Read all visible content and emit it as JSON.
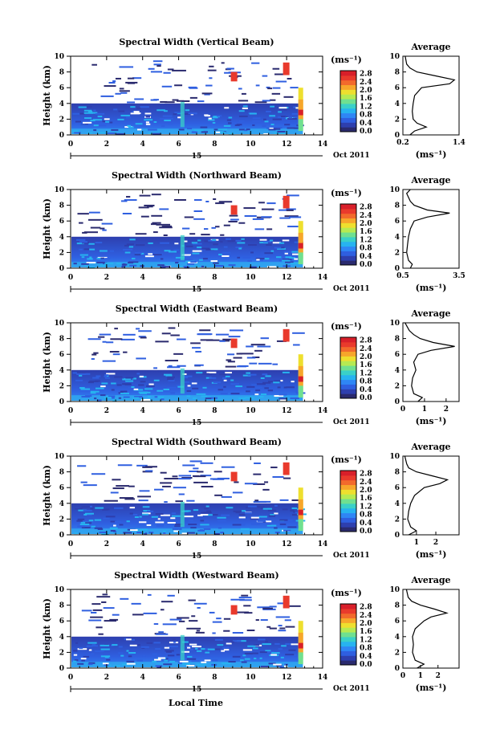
{
  "figure": {
    "xlabel": "Local Time",
    "colorbar_unit": "(ms⁻¹)",
    "colorbar_ticks": [
      "0.0",
      "0.4",
      "0.8",
      "1.2",
      "1.6",
      "2.0",
      "2.4",
      "2.8"
    ],
    "colorbar_colors": [
      "#2a2a6e",
      "#2e3fae",
      "#2f5fe0",
      "#2f86f5",
      "#27b3f0",
      "#3ad0c8",
      "#6fe090",
      "#b6ea52",
      "#eedf2e",
      "#f7a62b",
      "#f26a2c",
      "#e93a2c",
      "#d81f2a"
    ],
    "date_marker": "15",
    "date_label": "Oct 2011",
    "avg_title": "Average",
    "avg_unit": "(ms⁻¹)"
  },
  "chart_data": [
    {
      "type": "heatmap",
      "title": "Spectral Width (Vertical Beam)",
      "ylabel": "Height (km)",
      "xlim": [
        0,
        14
      ],
      "ylim": [
        0,
        10
      ],
      "xticks": [
        "0",
        "2",
        "4",
        "6",
        "8",
        "10",
        "12",
        "14"
      ],
      "yticks": [
        "0",
        "2",
        "4",
        "6",
        "8",
        "10"
      ],
      "avg": {
        "xlim": [
          0.2,
          1.4
        ],
        "xticks": [
          "0.2",
          "1.4"
        ],
        "profile": [
          [
            0,
            0.35
          ],
          [
            0.5,
            0.45
          ],
          [
            1,
            0.7
          ],
          [
            1.5,
            0.5
          ],
          [
            2,
            0.42
          ],
          [
            3,
            0.4
          ],
          [
            4,
            0.42
          ],
          [
            5,
            0.45
          ],
          [
            6,
            0.6
          ],
          [
            6.5,
            1.2
          ],
          [
            7,
            1.3
          ],
          [
            7.5,
            0.9
          ],
          [
            8,
            0.5
          ],
          [
            8.5,
            0.35
          ],
          [
            9,
            0.28
          ],
          [
            10,
            0.25
          ]
        ]
      }
    },
    {
      "type": "heatmap",
      "title": "Spectral Width (Northward Beam)",
      "ylabel": "Height (km)",
      "xlim": [
        0,
        14
      ],
      "ylim": [
        0,
        10
      ],
      "xticks": [
        "0",
        "2",
        "4",
        "6",
        "8",
        "10",
        "12",
        "14"
      ],
      "yticks": [
        "0",
        "2",
        "4",
        "6",
        "8",
        "10"
      ],
      "avg": {
        "xlim": [
          0.5,
          3.5
        ],
        "xticks": [
          "0.5",
          "3.5"
        ],
        "profile": [
          [
            0,
            0.9
          ],
          [
            0.5,
            1.0
          ],
          [
            1,
            0.8
          ],
          [
            2,
            0.7
          ],
          [
            3,
            0.75
          ],
          [
            4,
            0.8
          ],
          [
            5,
            0.9
          ],
          [
            6,
            1.1
          ],
          [
            6.5,
            1.8
          ],
          [
            7,
            3.0
          ],
          [
            7.4,
            1.8
          ],
          [
            8,
            1.1
          ],
          [
            8.5,
            0.9
          ],
          [
            9,
            0.8
          ],
          [
            9.5,
            0.7
          ],
          [
            10,
            0.9
          ]
        ]
      }
    },
    {
      "type": "heatmap",
      "title": "Spectral Width (Eastward Beam)",
      "ylabel": "Height (km)",
      "xlim": [
        0,
        14
      ],
      "ylim": [
        0,
        10
      ],
      "xticks": [
        "0",
        "2",
        "4",
        "6",
        "8",
        "10",
        "12",
        "14"
      ],
      "yticks": [
        "0",
        "2",
        "4",
        "6",
        "8",
        "10"
      ],
      "avg": {
        "xlim": [
          0,
          2.6
        ],
        "xticks": [
          "0",
          "1",
          "2"
        ],
        "profile": [
          [
            0,
            0.7
          ],
          [
            0.5,
            0.9
          ],
          [
            1,
            0.5
          ],
          [
            2,
            0.4
          ],
          [
            3,
            0.45
          ],
          [
            4,
            0.6
          ],
          [
            5,
            0.5
          ],
          [
            6,
            0.7
          ],
          [
            6.5,
            1.3
          ],
          [
            7,
            2.4
          ],
          [
            7.5,
            1.4
          ],
          [
            8,
            0.8
          ],
          [
            8.5,
            0.5
          ],
          [
            9,
            0.3
          ],
          [
            9.5,
            0.2
          ],
          [
            10,
            0.1
          ]
        ]
      }
    },
    {
      "type": "heatmap",
      "title": "Spectral Width (Southward Beam)",
      "ylabel": "Height (km)",
      "xlim": [
        0,
        14
      ],
      "ylim": [
        0,
        10
      ],
      "xticks": [
        "0",
        "2",
        "4",
        "6",
        "8",
        "10",
        "12",
        "14"
      ],
      "yticks": [
        "0",
        "2",
        "4",
        "6",
        "8",
        "10"
      ],
      "avg": {
        "xlim": [
          0.3,
          3.2
        ],
        "xticks": [
          "1",
          "2"
        ],
        "profile": [
          [
            0,
            0.6
          ],
          [
            0.5,
            1.0
          ],
          [
            1,
            0.7
          ],
          [
            2,
            0.55
          ],
          [
            3,
            0.6
          ],
          [
            4,
            0.7
          ],
          [
            5,
            0.9
          ],
          [
            6,
            1.4
          ],
          [
            6.5,
            2.2
          ],
          [
            7,
            2.6
          ],
          [
            7.5,
            1.8
          ],
          [
            8,
            1.0
          ],
          [
            8.5,
            0.6
          ],
          [
            9,
            0.5
          ],
          [
            10,
            0.4
          ]
        ]
      }
    },
    {
      "type": "heatmap",
      "title": "Spectral Width (Westward Beam)",
      "ylabel": "Height (km)",
      "xlim": [
        0,
        14
      ],
      "ylim": [
        0,
        10
      ],
      "xticks": [
        "0",
        "2",
        "4",
        "6",
        "8",
        "10",
        "12",
        "14"
      ],
      "yticks": [
        "0",
        "2",
        "4",
        "6",
        "8",
        "10"
      ],
      "avg": {
        "xlim": [
          0,
          3.2
        ],
        "xticks": [
          "0",
          "1",
          "2"
        ],
        "profile": [
          [
            0,
            0.8
          ],
          [
            0.5,
            1.2
          ],
          [
            1,
            0.7
          ],
          [
            2,
            0.55
          ],
          [
            3,
            0.6
          ],
          [
            4,
            0.55
          ],
          [
            5,
            0.7
          ],
          [
            6,
            1.2
          ],
          [
            6.5,
            1.6
          ],
          [
            7,
            2.5
          ],
          [
            7.5,
            1.8
          ],
          [
            8,
            1.0
          ],
          [
            8.5,
            0.5
          ],
          [
            9,
            0.3
          ],
          [
            10,
            0.2
          ]
        ]
      }
    }
  ]
}
